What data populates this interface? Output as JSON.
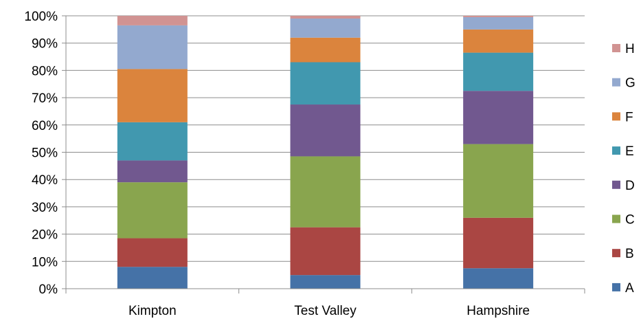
{
  "chart_data": {
    "type": "bar",
    "stacked": true,
    "percent": true,
    "categories": [
      "Kimpton",
      "Test Valley",
      "Hampshire"
    ],
    "series": [
      {
        "name": "A",
        "color": "#4572A7",
        "values": [
          8,
          5,
          7.5
        ]
      },
      {
        "name": "B",
        "color": "#AA4643",
        "values": [
          10.5,
          17.5,
          18.5
        ]
      },
      {
        "name": "C",
        "color": "#89A54E",
        "values": [
          20.5,
          26,
          27
        ]
      },
      {
        "name": "D",
        "color": "#71588F",
        "values": [
          8,
          19,
          19.5
        ]
      },
      {
        "name": "E",
        "color": "#4198AF",
        "values": [
          14,
          15.5,
          14
        ]
      },
      {
        "name": "F",
        "color": "#DB843D",
        "values": [
          19.5,
          9,
          8.5
        ]
      },
      {
        "name": "G",
        "color": "#93A9CF",
        "values": [
          16,
          7,
          4.5
        ]
      },
      {
        "name": "H",
        "color": "#D19392",
        "values": [
          3.5,
          1,
          0.5
        ]
      }
    ],
    "y_ticks": [
      "0%",
      "10%",
      "20%",
      "30%",
      "40%",
      "50%",
      "60%",
      "70%",
      "80%",
      "90%",
      "100%"
    ],
    "ylim": [
      0,
      100
    ],
    "grid": true,
    "legend_position": "right",
    "title": "",
    "xlabel": "",
    "ylabel": ""
  }
}
